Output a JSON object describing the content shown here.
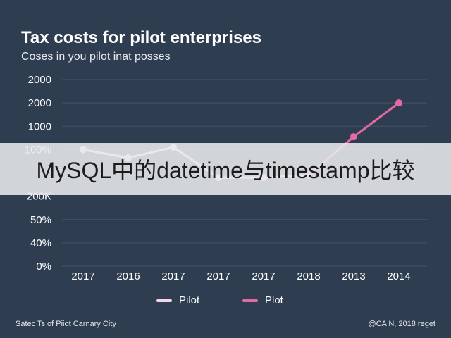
{
  "chart_data": {
    "type": "line",
    "title": "Tax costs for pilot enterprises",
    "subtitle": "Coses in you pilot inat posses",
    "categories": [
      "2017",
      "2016",
      "2017",
      "2017",
      "2017",
      "2018",
      "2013",
      "2014"
    ],
    "y_tick_labels": [
      "0%",
      "40%",
      "50%",
      "200K",
      "",
      "100%",
      "1000",
      "2000",
      "2000"
    ],
    "series": [
      {
        "name": "Pilot",
        "color": "#f6d6e6",
        "values": [
          5,
          4.65,
          5.1,
          3.8,
          3.8,
          3.9,
          null,
          null
        ]
      },
      {
        "name": "Plot",
        "color": "#e46aa6",
        "values": [
          null,
          null,
          null,
          null,
          null,
          3.9,
          5.55,
          7
        ]
      }
    ],
    "ylim": [
      0,
      8
    ],
    "grid": true,
    "legend": "bottom"
  },
  "overlay": {
    "banner_text": "MySQL中的datetime与timestamp比较"
  },
  "footer": {
    "left": "Satec Ts of Piiot Carnary City",
    "right": "@CA N, 2018 reget"
  },
  "colors": {
    "background": "#2f3d51",
    "gridline": "#44536a",
    "text": "#ffffff"
  }
}
